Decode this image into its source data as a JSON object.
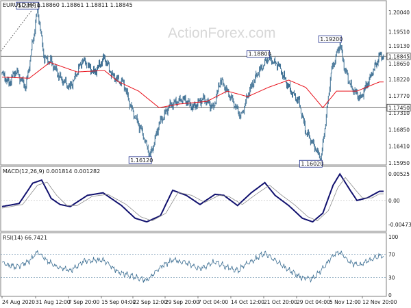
{
  "colors": {
    "candle": "#3d6f93",
    "sma": "#e8101a",
    "macd": "#10106e",
    "signal": "#8c8c8c",
    "rsi": "#3d6f93",
    "level": "#555555",
    "rsi_level": "#3d6f93",
    "border": "#7f7f7f"
  },
  "watermark": "ActionForex.com",
  "chart_data": [
    {
      "type": "candlestick",
      "title": "EURUSD,H4  1.18860 1.18861 1.18811 1.18845",
      "ylim": [
        1.1595,
        1.203
      ],
      "y_ticks": [
        "1.20040",
        "1.19510",
        "1.19130",
        "1.18650",
        "1.18220",
        "1.17770",
        "1.17310",
        "1.16850",
        "1.16410",
        "1.15950"
      ],
      "y_tick_values": [
        1.2004,
        1.1951,
        1.1913,
        1.1865,
        1.1822,
        1.1777,
        1.1731,
        1.1685,
        1.1641,
        1.1595
      ],
      "levels": [
        {
          "value": 1.18845,
          "label": "1.18845"
        },
        {
          "value": 1.1745,
          "label": "1.17450"
        }
      ],
      "annotations": [
        {
          "label": "1.20110",
          "value": 1.2011,
          "bar": 52
        },
        {
          "label": "1.16120",
          "value": 1.1612,
          "bar": 217
        },
        {
          "label": "1.18800",
          "value": 1.188,
          "bar": 390
        },
        {
          "label": "1.16020",
          "value": 1.1602,
          "bar": 467
        },
        {
          "label": "1.19200",
          "value": 1.192,
          "bar": 495
        }
      ],
      "sma_anchors": [
        [
          0,
          1.1828
        ],
        [
          40,
          1.1825
        ],
        [
          70,
          1.1868
        ],
        [
          110,
          1.1842
        ],
        [
          150,
          1.1846
        ],
        [
          170,
          1.1816
        ],
        [
          200,
          1.179
        ],
        [
          230,
          1.1745
        ],
        [
          260,
          1.1755
        ],
        [
          300,
          1.1762
        ],
        [
          330,
          1.179
        ],
        [
          360,
          1.1775
        ],
        [
          390,
          1.18
        ],
        [
          420,
          1.182
        ],
        [
          445,
          1.18
        ],
        [
          470,
          1.1745
        ],
        [
          490,
          1.179
        ],
        [
          520,
          1.179
        ],
        [
          553,
          1.1815
        ]
      ],
      "price_anchors": [
        [
          0,
          1.1838
        ],
        [
          10,
          1.181
        ],
        [
          20,
          1.1845
        ],
        [
          35,
          1.18
        ],
        [
          52,
          1.2011
        ],
        [
          62,
          1.188
        ],
        [
          72,
          1.187
        ],
        [
          85,
          1.1825
        ],
        [
          100,
          1.18
        ],
        [
          118,
          1.1875
        ],
        [
          135,
          1.184
        ],
        [
          150,
          1.188
        ],
        [
          162,
          1.183
        ],
        [
          178,
          1.181
        ],
        [
          190,
          1.174
        ],
        [
          205,
          1.168
        ],
        [
          217,
          1.1612
        ],
        [
          230,
          1.17
        ],
        [
          245,
          1.175
        ],
        [
          265,
          1.177
        ],
        [
          280,
          1.1745
        ],
        [
          295,
          1.177
        ],
        [
          310,
          1.1745
        ],
        [
          320,
          1.182
        ],
        [
          333,
          1.178
        ],
        [
          350,
          1.172
        ],
        [
          362,
          1.179
        ],
        [
          375,
          1.184
        ],
        [
          390,
          1.188
        ],
        [
          405,
          1.186
        ],
        [
          420,
          1.18
        ],
        [
          435,
          1.176
        ],
        [
          445,
          1.168
        ],
        [
          458,
          1.164
        ],
        [
          467,
          1.1602
        ],
        [
          475,
          1.172
        ],
        [
          482,
          1.184
        ],
        [
          495,
          1.192
        ],
        [
          502,
          1.185
        ],
        [
          512,
          1.18
        ],
        [
          525,
          1.177
        ],
        [
          540,
          1.183
        ],
        [
          553,
          1.18845
        ]
      ]
    },
    {
      "type": "line",
      "title": "MACD(12,26,9) 0.001814 0.001282",
      "ylim": [
        -0.0058,
        0.0063
      ],
      "y_ticks": [
        "0.00525",
        "0.00",
        "-0.004732"
      ],
      "y_tick_values": [
        0.00525,
        0.0,
        -0.004732
      ],
      "series": [
        {
          "role": "macd",
          "anchors": [
            [
              0,
              -0.0012
            ],
            [
              25,
              -0.0006
            ],
            [
              45,
              0.0034
            ],
            [
              58,
              0.004
            ],
            [
              72,
              0.0004
            ],
            [
              85,
              -0.0008
            ],
            [
              100,
              -0.0012
            ],
            [
              125,
              0.001
            ],
            [
              148,
              0.0015
            ],
            [
              175,
              -0.001
            ],
            [
              195,
              -0.0035
            ],
            [
              212,
              -0.0042
            ],
            [
              232,
              -0.003
            ],
            [
              250,
              0.002
            ],
            [
              270,
              0.001
            ],
            [
              290,
              -0.0008
            ],
            [
              312,
              0.0012
            ],
            [
              325,
              0.001
            ],
            [
              345,
              -0.001
            ],
            [
              365,
              0.0015
            ],
            [
              385,
              0.0035
            ],
            [
              400,
              0.001
            ],
            [
              420,
              -0.001
            ],
            [
              440,
              -0.0035
            ],
            [
              455,
              -0.0042
            ],
            [
              470,
              -0.0025
            ],
            [
              485,
              0.003
            ],
            [
              495,
              0.0052
            ],
            [
              510,
              0.002
            ],
            [
              520,
              0.0
            ],
            [
              535,
              0.0005
            ],
            [
              553,
              0.0018
            ]
          ]
        },
        {
          "role": "signal",
          "anchors": [
            [
              0,
              -0.0015
            ],
            [
              30,
              -0.0008
            ],
            [
              52,
              0.003
            ],
            [
              66,
              0.0036
            ],
            [
              80,
              0.001
            ],
            [
              95,
              -0.001
            ],
            [
              110,
              -0.001
            ],
            [
              132,
              0.0008
            ],
            [
              155,
              0.0012
            ],
            [
              182,
              -0.0008
            ],
            [
              203,
              -0.0032
            ],
            [
              220,
              -0.004
            ],
            [
              240,
              -0.0025
            ],
            [
              258,
              0.0016
            ],
            [
              278,
              0.001
            ],
            [
              297,
              -0.0004
            ],
            [
              318,
              0.001
            ],
            [
              332,
              0.0008
            ],
            [
              352,
              -0.0008
            ],
            [
              372,
              0.0012
            ],
            [
              392,
              0.003
            ],
            [
              408,
              0.0012
            ],
            [
              428,
              -0.0008
            ],
            [
              448,
              -0.0032
            ],
            [
              462,
              -0.004
            ],
            [
              478,
              -0.002
            ],
            [
              492,
              0.0025
            ],
            [
              503,
              0.0045
            ],
            [
              517,
              0.0022
            ],
            [
              528,
              0.0005
            ],
            [
              542,
              0.0005
            ],
            [
              553,
              0.0013
            ]
          ]
        }
      ]
    },
    {
      "type": "line",
      "title": "RSI(14) 66.7421",
      "ylim": [
        0,
        100
      ],
      "y_ticks": [
        "100",
        "70",
        "30",
        "0"
      ],
      "y_tick_values": [
        100,
        70,
        30,
        0
      ],
      "levels": [
        70,
        30
      ],
      "series": [
        {
          "role": "rsi",
          "anchors": [
            [
              0,
              55
            ],
            [
              20,
              48
            ],
            [
              40,
              58
            ],
            [
              52,
              75
            ],
            [
              62,
              62
            ],
            [
              80,
              48
            ],
            [
              100,
              42
            ],
            [
              120,
              58
            ],
            [
              148,
              60
            ],
            [
              170,
              40
            ],
            [
              190,
              32
            ],
            [
              212,
              25
            ],
            [
              232,
              48
            ],
            [
              250,
              60
            ],
            [
              270,
              55
            ],
            [
              290,
              45
            ],
            [
              312,
              58
            ],
            [
              325,
              50
            ],
            [
              345,
              42
            ],
            [
              365,
              58
            ],
            [
              385,
              72
            ],
            [
              400,
              60
            ],
            [
              420,
              42
            ],
            [
              440,
              30
            ],
            [
              455,
              28
            ],
            [
              470,
              45
            ],
            [
              485,
              68
            ],
            [
              495,
              74
            ],
            [
              510,
              55
            ],
            [
              525,
              52
            ],
            [
              540,
              60
            ],
            [
              553,
              66.7
            ]
          ]
        }
      ]
    }
  ],
  "x_labels": [
    "24 Aug 2020",
    "31 Aug 12:00",
    "7 Sep 20:00",
    "15 Sep 04:00",
    "22 Sep 12:00",
    "29 Sep 20:00",
    "7 Oct 04:00",
    "14 Oct 12:00",
    "21 Oct 20:00",
    "29 Oct 04:00",
    "5 Nov 12:00",
    "12 Nov 20:00"
  ]
}
